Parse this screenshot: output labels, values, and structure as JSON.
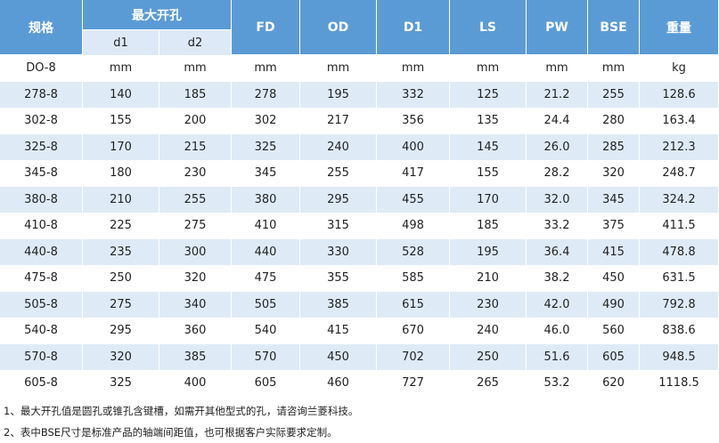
{
  "table": {
    "header": {
      "spec": "规格",
      "group": "最大开孔",
      "sub": [
        "d1",
        "d2"
      ],
      "columns": [
        "FD",
        "OD",
        "D1",
        "LS",
        "PW",
        "BSE",
        "重量"
      ]
    },
    "units": [
      "DO-8",
      "mm",
      "mm",
      "mm",
      "mm",
      "mm",
      "mm",
      "mm",
      "mm",
      "kg"
    ],
    "rows": [
      [
        "278-8",
        "140",
        "185",
        "278",
        "195",
        "332",
        "125",
        "21.2",
        "255",
        "128.6"
      ],
      [
        "302-8",
        "155",
        "200",
        "302",
        "217",
        "356",
        "135",
        "24.4",
        "280",
        "163.4"
      ],
      [
        "325-8",
        "170",
        "215",
        "325",
        "240",
        "400",
        "145",
        "26.0",
        "285",
        "212.3"
      ],
      [
        "345-8",
        "180",
        "230",
        "345",
        "255",
        "417",
        "155",
        "28.2",
        "320",
        "248.7"
      ],
      [
        "380-8",
        "210",
        "255",
        "380",
        "295",
        "455",
        "170",
        "32.0",
        "345",
        "324.2"
      ],
      [
        "410-8",
        "225",
        "275",
        "410",
        "315",
        "498",
        "185",
        "33.2",
        "375",
        "411.5"
      ],
      [
        "440-8",
        "235",
        "300",
        "440",
        "330",
        "528",
        "195",
        "36.4",
        "415",
        "478.8"
      ],
      [
        "475-8",
        "250",
        "320",
        "475",
        "355",
        "585",
        "210",
        "38.2",
        "450",
        "631.5"
      ],
      [
        "505-8",
        "275",
        "340",
        "505",
        "385",
        "615",
        "230",
        "42.0",
        "490",
        "792.8"
      ],
      [
        "540-8",
        "295",
        "360",
        "540",
        "415",
        "670",
        "240",
        "46.0",
        "560",
        "838.6"
      ],
      [
        "570-8",
        "320",
        "385",
        "570",
        "450",
        "702",
        "250",
        "51.6",
        "605",
        "948.5"
      ],
      [
        "605-8",
        "325",
        "400",
        "605",
        "460",
        "727",
        "265",
        "53.2",
        "620",
        "1118.5"
      ]
    ]
  },
  "notes": [
    "1、最大开孔值是圆孔或锥孔含键槽，如需开其他型式的孔，请咨询兰菱科技。",
    "2、表中BSE尺寸是标准产品的轴端间距值，也可根据客户实际要求定制。"
  ]
}
